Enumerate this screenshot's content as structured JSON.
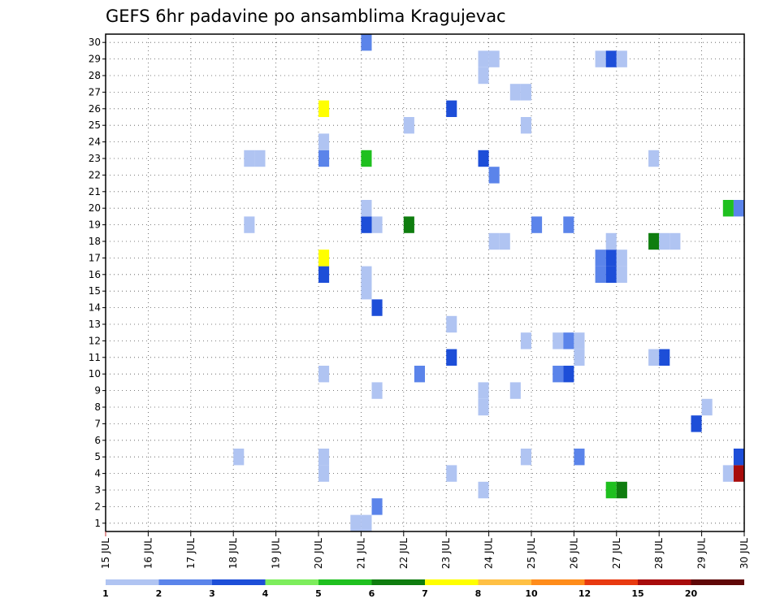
{
  "chart_data": {
    "type": "heatmap",
    "title": "GEFS 6hr padavine po ansamblima Kragujevac",
    "xlabel": "",
    "ylabel": "",
    "x_ticks": [
      "15 JUL",
      "16 JUL",
      "17 JUL",
      "18 JUL",
      "19 JUL",
      "20 JUL",
      "21 JUL",
      "22 JUL",
      "23 JUL",
      "24 JUL",
      "25 JUL",
      "26 JUL",
      "27 JUL",
      "28 JUL",
      "29 JUL",
      "30 JUL"
    ],
    "y_ticks": [
      "1",
      "2",
      "3",
      "4",
      "5",
      "6",
      "7",
      "8",
      "9",
      "10",
      "11",
      "12",
      "13",
      "14",
      "15",
      "16",
      "17",
      "18",
      "19",
      "20",
      "21",
      "22",
      "23",
      "24",
      "25",
      "26",
      "27",
      "28",
      "29",
      "30"
    ],
    "xlim": [
      0,
      60
    ],
    "ylim": [
      0.5,
      30.5
    ],
    "grid": true,
    "colorbar": {
      "labels": [
        "1",
        "2",
        "3",
        "4",
        "5",
        "6",
        "7",
        "8",
        "10",
        "12",
        "15",
        "20"
      ],
      "colors": [
        "#b0c4f2",
        "#5b84ea",
        "#1d4ed8",
        "#7ded5c",
        "#1fc01f",
        "#0f7d0f",
        "#ffff00",
        "#ffc044",
        "#ff8c1a",
        "#e83a10",
        "#a80c0c",
        "#600808"
      ]
    },
    "x_unit": "6-hour step index from 15 JUL 00Z",
    "cells": [
      {
        "t": 23,
        "m": 1,
        "v": 1
      },
      {
        "t": 24,
        "m": 1,
        "v": 1
      },
      {
        "t": 25,
        "m": 2,
        "v": 2
      },
      {
        "t": 35,
        "m": 3,
        "v": 1
      },
      {
        "t": 47,
        "m": 3,
        "v": 5
      },
      {
        "t": 48,
        "m": 3,
        "v": 6
      },
      {
        "t": 20,
        "m": 4,
        "v": 1
      },
      {
        "t": 32,
        "m": 4,
        "v": 1
      },
      {
        "t": 58,
        "m": 4,
        "v": 1
      },
      {
        "t": 59,
        "m": 4,
        "v": 15
      },
      {
        "t": 12,
        "m": 5,
        "v": 1
      },
      {
        "t": 20,
        "m": 5,
        "v": 1
      },
      {
        "t": 39,
        "m": 5,
        "v": 1
      },
      {
        "t": 44,
        "m": 5,
        "v": 2
      },
      {
        "t": 59,
        "m": 5,
        "v": 3
      },
      {
        "t": 55,
        "m": 7,
        "v": 3
      },
      {
        "t": 35,
        "m": 8,
        "v": 1
      },
      {
        "t": 56,
        "m": 8,
        "v": 1
      },
      {
        "t": 25,
        "m": 9,
        "v": 1
      },
      {
        "t": 35,
        "m": 9,
        "v": 1
      },
      {
        "t": 38,
        "m": 9,
        "v": 1
      },
      {
        "t": 20,
        "m": 10,
        "v": 1
      },
      {
        "t": 29,
        "m": 10,
        "v": 2
      },
      {
        "t": 42,
        "m": 10,
        "v": 2
      },
      {
        "t": 43,
        "m": 10,
        "v": 3
      },
      {
        "t": 32,
        "m": 11,
        "v": 3
      },
      {
        "t": 44,
        "m": 11,
        "v": 1
      },
      {
        "t": 51,
        "m": 11,
        "v": 1
      },
      {
        "t": 52,
        "m": 11,
        "v": 3
      },
      {
        "t": 39,
        "m": 12,
        "v": 1
      },
      {
        "t": 42,
        "m": 12,
        "v": 1
      },
      {
        "t": 43,
        "m": 12,
        "v": 2
      },
      {
        "t": 44,
        "m": 12,
        "v": 1
      },
      {
        "t": 32,
        "m": 13,
        "v": 1
      },
      {
        "t": 25,
        "m": 14,
        "v": 3
      },
      {
        "t": 24,
        "m": 15,
        "v": 1
      },
      {
        "t": 20,
        "m": 16,
        "v": 3
      },
      {
        "t": 24,
        "m": 16,
        "v": 1
      },
      {
        "t": 46,
        "m": 16,
        "v": 2
      },
      {
        "t": 47,
        "m": 16,
        "v": 3
      },
      {
        "t": 48,
        "m": 16,
        "v": 1
      },
      {
        "t": 20,
        "m": 17,
        "v": 7
      },
      {
        "t": 46,
        "m": 17,
        "v": 2
      },
      {
        "t": 47,
        "m": 17,
        "v": 3
      },
      {
        "t": 48,
        "m": 17,
        "v": 1
      },
      {
        "t": 36,
        "m": 18,
        "v": 1
      },
      {
        "t": 37,
        "m": 18,
        "v": 1
      },
      {
        "t": 47,
        "m": 18,
        "v": 1
      },
      {
        "t": 51,
        "m": 18,
        "v": 6
      },
      {
        "t": 52,
        "m": 18,
        "v": 1
      },
      {
        "t": 53,
        "m": 18,
        "v": 1
      },
      {
        "t": 13,
        "m": 19,
        "v": 1
      },
      {
        "t": 24,
        "m": 19,
        "v": 3
      },
      {
        "t": 25,
        "m": 19,
        "v": 1
      },
      {
        "t": 28,
        "m": 19,
        "v": 6
      },
      {
        "t": 40,
        "m": 19,
        "v": 2
      },
      {
        "t": 43,
        "m": 19,
        "v": 2
      },
      {
        "t": 24,
        "m": 20,
        "v": 1
      },
      {
        "t": 58,
        "m": 20,
        "v": 5
      },
      {
        "t": 59,
        "m": 20,
        "v": 2
      },
      {
        "t": 36,
        "m": 22,
        "v": 2
      },
      {
        "t": 13,
        "m": 23,
        "v": 1
      },
      {
        "t": 14,
        "m": 23,
        "v": 1
      },
      {
        "t": 20,
        "m": 23,
        "v": 2
      },
      {
        "t": 24,
        "m": 23,
        "v": 5
      },
      {
        "t": 35,
        "m": 23,
        "v": 3
      },
      {
        "t": 51,
        "m": 23,
        "v": 1
      },
      {
        "t": 20,
        "m": 24,
        "v": 1
      },
      {
        "t": 28,
        "m": 25,
        "v": 1
      },
      {
        "t": 39,
        "m": 25,
        "v": 1
      },
      {
        "t": 20,
        "m": 26,
        "v": 7
      },
      {
        "t": 32,
        "m": 26,
        "v": 3
      },
      {
        "t": 38,
        "m": 27,
        "v": 1
      },
      {
        "t": 39,
        "m": 27,
        "v": 1
      },
      {
        "t": 35,
        "m": 28,
        "v": 1
      },
      {
        "t": 35,
        "m": 29,
        "v": 1
      },
      {
        "t": 36,
        "m": 29,
        "v": 1
      },
      {
        "t": 46,
        "m": 29,
        "v": 1
      },
      {
        "t": 47,
        "m": 29,
        "v": 3
      },
      {
        "t": 48,
        "m": 29,
        "v": 1
      },
      {
        "t": 24,
        "m": 30,
        "v": 2
      }
    ]
  }
}
